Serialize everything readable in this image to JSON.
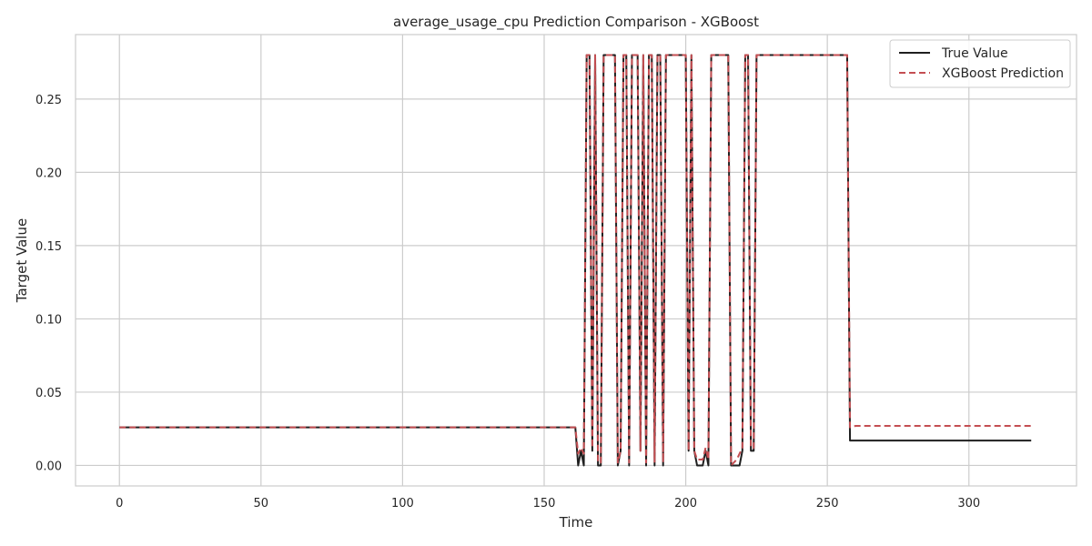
{
  "chart_data": {
    "type": "line",
    "title": "average_usage_cpu Prediction Comparison - XGBoost",
    "xlabel": "Time",
    "ylabel": "Target Value",
    "xlim": [
      -15.5,
      338
    ],
    "ylim": [
      -0.014,
      0.294
    ],
    "xticks": [
      0,
      50,
      100,
      150,
      200,
      250,
      300
    ],
    "xtick_labels": [
      "0",
      "50",
      "100",
      "150",
      "200",
      "250",
      "300"
    ],
    "yticks": [
      0.0,
      0.05,
      0.1,
      0.15,
      0.2,
      0.25
    ],
    "ytick_labels": [
      "0.00",
      "0.05",
      "0.10",
      "0.15",
      "0.20",
      "0.25"
    ],
    "grid": true,
    "legend_position": "top-right",
    "series": [
      {
        "name": "True Value",
        "color": "#1f1f1f",
        "style": "solid",
        "x": [
          0,
          161,
          162,
          163,
          164,
          165,
          166,
          167,
          168,
          169,
          170,
          171,
          175,
          176,
          177,
          178,
          179,
          180,
          181,
          182,
          183,
          184,
          185,
          186,
          187,
          188,
          189,
          190,
          191,
          192,
          193,
          194,
          195,
          200,
          201,
          202,
          203,
          204,
          205,
          206,
          207,
          208,
          209,
          210,
          215,
          216,
          217,
          218,
          219,
          220,
          221,
          222,
          223,
          224,
          225,
          226,
          257,
          258,
          322
        ],
        "y": [
          0.026,
          0.026,
          0.0,
          0.01,
          0.0,
          0.28,
          0.28,
          0.01,
          0.28,
          0.0,
          0.0,
          0.28,
          0.28,
          0.0,
          0.01,
          0.28,
          0.28,
          0.0,
          0.28,
          0.28,
          0.28,
          0.01,
          0.28,
          0.0,
          0.28,
          0.28,
          0.0,
          0.28,
          0.28,
          0.0,
          0.28,
          0.28,
          0.28,
          0.28,
          0.01,
          0.28,
          0.01,
          0.0,
          0.0,
          0.0,
          0.01,
          0.0,
          0.28,
          0.28,
          0.28,
          0.0,
          0.0,
          0.0,
          0.0,
          0.01,
          0.28,
          0.28,
          0.01,
          0.01,
          0.28,
          0.28,
          0.28,
          0.017,
          0.017
        ]
      },
      {
        "name": "XGBoost Prediction",
        "color": "#c44e52",
        "style": "dashed",
        "x": [
          0,
          161,
          162,
          163,
          164,
          165,
          166,
          167,
          168,
          169,
          170,
          171,
          175,
          176,
          177,
          178,
          179,
          180,
          181,
          182,
          183,
          184,
          185,
          186,
          187,
          188,
          189,
          190,
          191,
          192,
          193,
          194,
          195,
          200,
          201,
          202,
          203,
          204,
          205,
          206,
          207,
          208,
          209,
          210,
          215,
          216,
          217,
          218,
          219,
          220,
          221,
          222,
          223,
          224,
          225,
          226,
          257,
          258,
          260,
          322
        ],
        "y": [
          0.026,
          0.026,
          0.008,
          0.012,
          0.008,
          0.28,
          0.28,
          0.012,
          0.28,
          0.002,
          0.002,
          0.28,
          0.28,
          0.002,
          0.01,
          0.28,
          0.28,
          0.002,
          0.28,
          0.28,
          0.28,
          0.01,
          0.28,
          0.002,
          0.28,
          0.28,
          0.002,
          0.28,
          0.28,
          0.002,
          0.28,
          0.28,
          0.28,
          0.28,
          0.01,
          0.28,
          0.01,
          0.004,
          0.004,
          0.004,
          0.012,
          0.004,
          0.28,
          0.28,
          0.28,
          0.0,
          0.002,
          0.004,
          0.008,
          0.012,
          0.28,
          0.28,
          0.012,
          0.012,
          0.28,
          0.28,
          0.28,
          0.026,
          0.027,
          0.027
        ]
      }
    ]
  }
}
